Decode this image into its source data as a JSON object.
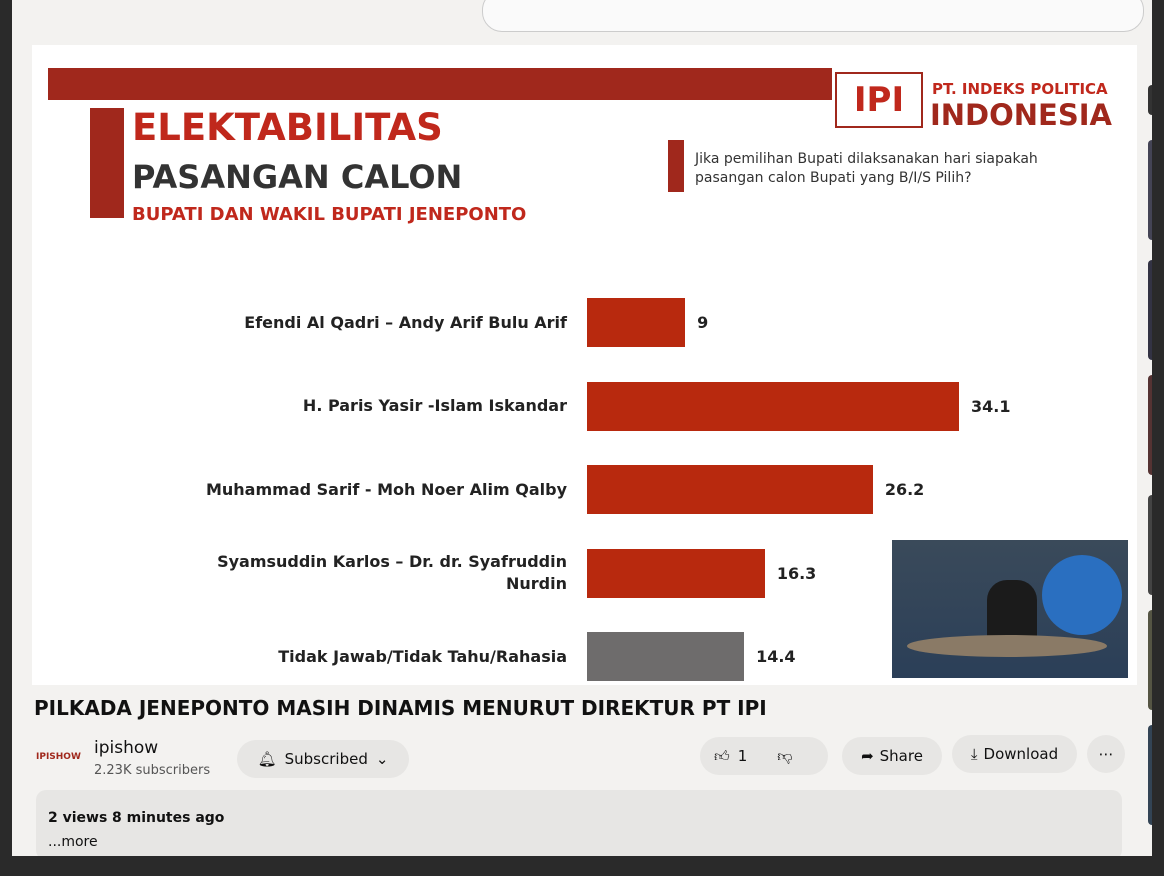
{
  "slide": {
    "logo_mark": "IPI",
    "logo_line1": "PT. INDEKS POLITICA",
    "logo_line2": "INDONESIA",
    "title": "ELEKTABILITAS",
    "subtitle": "PASANGAN CALON",
    "subtitle2": "BUPATI DAN WAKIL BUPATI JENEPONTO",
    "question": "Jika pemilihan Bupati dilaksanakan hari siapakah pasangan calon Bupati yang B/I/S Pilih?"
  },
  "chart_data": {
    "type": "bar",
    "orientation": "horizontal",
    "categories": [
      "Efendi Al Qadri – Andy Arif Bulu Arif",
      "H. Paris Yasir -Islam Iskandar",
      "Muhammad Sarif - Moh Noer Alim Qalby",
      "Syamsuddin Karlos – Dr. dr. Syafruddin Nurdin",
      "Tidak Jawab/Tidak Tahu/Rahasia"
    ],
    "values": [
      9,
      34.1,
      26.2,
      16.3,
      14.4
    ],
    "colors": [
      "#b8290e",
      "#b8290e",
      "#b8290e",
      "#b8290e",
      "#6e6c6c"
    ]
  },
  "video": {
    "title": "PILKADA JENEPONTO MASIH DINAMIS MENURUT DIREKTUR PT IPI",
    "channel_logo": "IPISHOW",
    "channel": "ipishow",
    "subscribers": "2.23K subscribers",
    "subscribe_button": "Subscribed",
    "likes": 1,
    "share": "Share",
    "download": "Download",
    "views": "2 views",
    "age": "8 minutes ago",
    "more": "...more"
  }
}
